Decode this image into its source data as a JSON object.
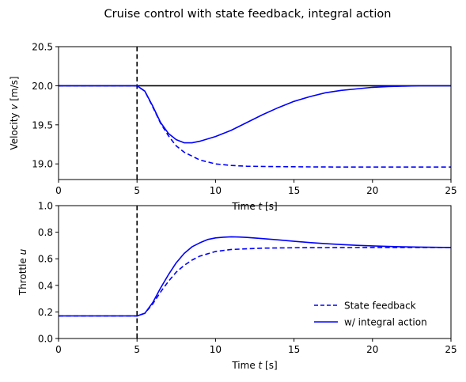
{
  "figure_title": "Cruise control with state feedback, integral action",
  "chart_data": [
    {
      "type": "line",
      "ylabel": "Velocity v [m/s]",
      "xlabel": "Time t [s]",
      "xlim": [
        0,
        25
      ],
      "ylim": [
        18.8,
        20.5
      ],
      "xticks": [
        0,
        5,
        10,
        15,
        20,
        25
      ],
      "yticks": [
        19.0,
        19.5,
        20.0,
        20.5
      ],
      "ytick_labels": [
        "19.0",
        "19.5",
        "20.0",
        "20.5"
      ],
      "grid": false,
      "reference_lines": [
        {
          "orientation": "horizontal",
          "value": 20.0,
          "color": "#000000",
          "style": "solid"
        },
        {
          "orientation": "vertical",
          "value": 5,
          "color": "#000000",
          "style": "dashed"
        }
      ],
      "series": [
        {
          "style": "dashed",
          "color": "#0000ff",
          "x": [
            0,
            5,
            5.5,
            6,
            6.5,
            7,
            7.5,
            8,
            9,
            10,
            11,
            12,
            14,
            16,
            18,
            20,
            25
          ],
          "y": [
            20.0,
            20.0,
            19.93,
            19.73,
            19.52,
            19.36,
            19.23,
            19.15,
            19.05,
            19.0,
            18.98,
            18.97,
            18.965,
            18.962,
            18.96,
            18.96,
            18.96
          ]
        },
        {
          "style": "solid",
          "color": "#0000ff",
          "x": [
            0,
            5,
            5.5,
            6,
            6.5,
            7,
            7.5,
            8,
            8.5,
            9,
            10,
            11,
            12,
            13,
            14,
            15,
            16,
            17,
            18,
            19,
            20,
            21,
            22,
            23,
            25
          ],
          "y": [
            20.0,
            20.0,
            19.93,
            19.74,
            19.53,
            19.39,
            19.31,
            19.27,
            19.27,
            19.29,
            19.35,
            19.43,
            19.53,
            19.63,
            19.72,
            19.8,
            19.86,
            19.91,
            19.94,
            19.96,
            19.98,
            19.99,
            19.995,
            20.0,
            20.0
          ]
        }
      ]
    },
    {
      "type": "line",
      "ylabel": "Throttle u",
      "xlabel": "Time t [s]",
      "xlim": [
        0,
        25
      ],
      "ylim": [
        0,
        1
      ],
      "xticks": [
        0,
        5,
        10,
        15,
        20,
        25
      ],
      "yticks": [
        0.0,
        0.2,
        0.4,
        0.6,
        0.8,
        1.0
      ],
      "ytick_labels": [
        "0.0",
        "0.2",
        "0.4",
        "0.6",
        "0.8",
        "1.0"
      ],
      "grid": false,
      "legend_position": "lower-right",
      "reference_lines": [
        {
          "orientation": "vertical",
          "value": 5,
          "color": "#000000",
          "style": "dashed"
        }
      ],
      "series": [
        {
          "name": "State feedback",
          "style": "dashed",
          "color": "#0000ff",
          "x": [
            0,
            5,
            5.5,
            6,
            6.5,
            7,
            7.5,
            8,
            8.5,
            9,
            10,
            11,
            12,
            13,
            15,
            20,
            25
          ],
          "y": [
            0.17,
            0.17,
            0.19,
            0.26,
            0.35,
            0.43,
            0.5,
            0.55,
            0.59,
            0.62,
            0.655,
            0.67,
            0.675,
            0.68,
            0.683,
            0.685,
            0.685
          ]
        },
        {
          "name": "w/ integral action",
          "style": "solid",
          "color": "#0000ff",
          "x": [
            0,
            5,
            5.5,
            6,
            6.5,
            7,
            7.5,
            8,
            8.5,
            9,
            9.5,
            10,
            10.5,
            11,
            11.5,
            12,
            13,
            14,
            15,
            16,
            17,
            18,
            19,
            20,
            21,
            22,
            23,
            25
          ],
          "y": [
            0.17,
            0.17,
            0.19,
            0.27,
            0.38,
            0.48,
            0.57,
            0.64,
            0.69,
            0.72,
            0.745,
            0.757,
            0.762,
            0.765,
            0.764,
            0.761,
            0.752,
            0.742,
            0.732,
            0.722,
            0.714,
            0.707,
            0.701,
            0.697,
            0.693,
            0.69,
            0.688,
            0.685
          ]
        }
      ]
    }
  ]
}
